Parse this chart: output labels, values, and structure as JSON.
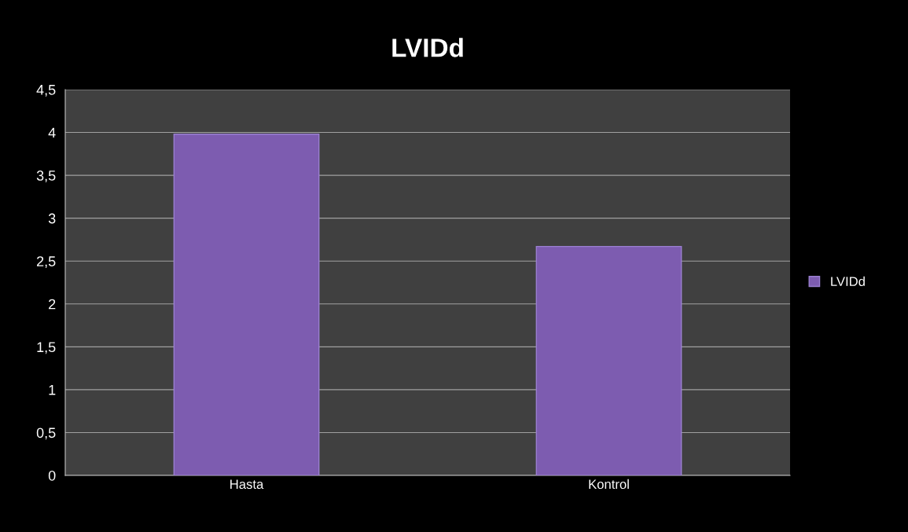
{
  "chart_data": {
    "type": "bar",
    "title": "LVIDd",
    "categories": [
      "Hasta",
      "Kontrol"
    ],
    "series": [
      {
        "name": "LVIDd",
        "color": "#7d5cb0",
        "values": [
          3.98,
          2.67
        ]
      }
    ],
    "ylim": [
      0,
      4.5
    ],
    "yticks": [
      0,
      {
        "value": 0.5,
        "label": "0,5"
      },
      1,
      {
        "value": 1.5,
        "label": "1,5"
      },
      2,
      {
        "value": 2.5,
        "label": "2,5"
      },
      3,
      {
        "value": 3.5,
        "label": "3,5"
      },
      4,
      {
        "value": 4.5,
        "label": "4,5"
      }
    ],
    "grid": "y",
    "legend": "right"
  }
}
